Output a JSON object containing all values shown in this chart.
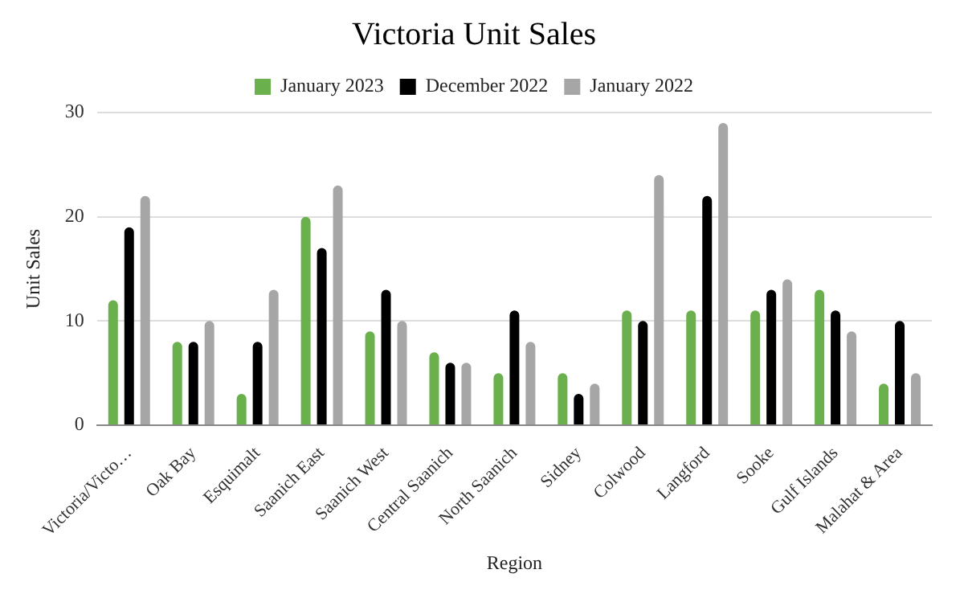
{
  "chart_data": {
    "type": "bar",
    "title": "Victoria Unit Sales",
    "xlabel": "Region",
    "ylabel": "Unit Sales",
    "categories": [
      "Victoria/Victo…",
      "Oak Bay",
      "Esquimalt",
      "Saanich East",
      "Saanich West",
      "Central Saanich",
      "North Saanich",
      "Sidney",
      "Colwood",
      "Langford",
      "Sooke",
      "Gulf Islands",
      "Malahat & Area"
    ],
    "series": [
      {
        "name": "January 2023",
        "color": "#6ab04c",
        "values": [
          12,
          8,
          3,
          20,
          9,
          7,
          5,
          5,
          11,
          11,
          11,
          13,
          4
        ]
      },
      {
        "name": "December 2022",
        "color": "#000000",
        "values": [
          19,
          8,
          8,
          17,
          13,
          6,
          11,
          3,
          10,
          22,
          13,
          11,
          10
        ]
      },
      {
        "name": "January 2022",
        "color": "#a6a6a6",
        "values": [
          22,
          10,
          13,
          23,
          10,
          6,
          8,
          4,
          24,
          29,
          14,
          9,
          5
        ]
      }
    ],
    "ylim": [
      0,
      30
    ],
    "yticks": [
      0,
      10,
      20,
      30
    ],
    "grid": "y",
    "legend": "top"
  }
}
